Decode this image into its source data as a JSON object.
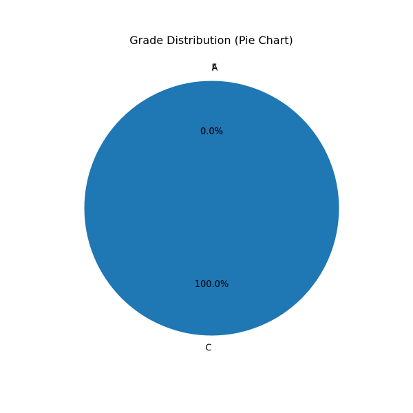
{
  "chart_data": {
    "type": "pie",
    "title": "Grade Distribution (Pie Chart)",
    "categories": [
      "A",
      "C",
      "F"
    ],
    "values": [
      0,
      100,
      0
    ],
    "percent_labels": [
      "0.0%",
      "100.0%",
      "0.0%"
    ],
    "colors": [
      "#ff7f0e",
      "#1f77b4",
      "#2ca02c"
    ]
  }
}
